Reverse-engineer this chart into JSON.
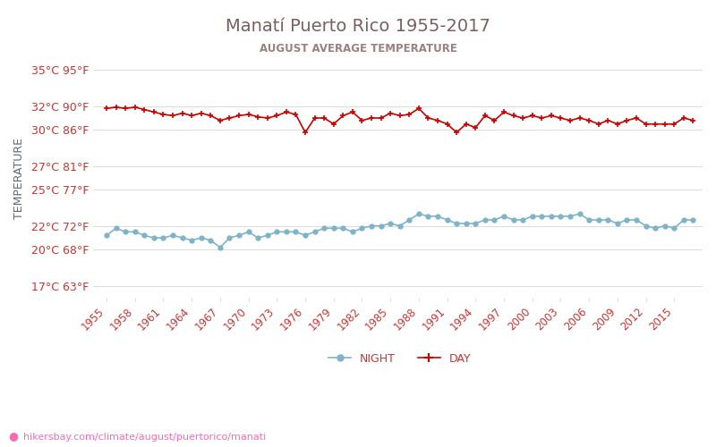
{
  "title": "Manatí Puerto Rico 1955-2017",
  "subtitle": "AUGUST AVERAGE TEMPERATURE",
  "ylabel": "TEMPERATURE",
  "url_text": "hikersbay.com/climate/august/puertorico/manati",
  "years": [
    1955,
    1956,
    1957,
    1958,
    1959,
    1960,
    1961,
    1962,
    1963,
    1964,
    1965,
    1966,
    1967,
    1968,
    1969,
    1970,
    1971,
    1972,
    1973,
    1974,
    1975,
    1976,
    1977,
    1978,
    1979,
    1980,
    1981,
    1982,
    1983,
    1984,
    1985,
    1986,
    1987,
    1988,
    1989,
    1990,
    1991,
    1992,
    1993,
    1994,
    1995,
    1996,
    1997,
    1998,
    1999,
    2000,
    2001,
    2002,
    2003,
    2004,
    2005,
    2006,
    2007,
    2008,
    2009,
    2010,
    2011,
    2012,
    2013,
    2014,
    2015,
    2016,
    2017
  ],
  "day_temps": [
    31.8,
    31.9,
    31.8,
    31.9,
    31.7,
    31.5,
    31.3,
    31.2,
    31.4,
    31.2,
    31.4,
    31.2,
    30.8,
    31.0,
    31.2,
    31.3,
    31.1,
    31.0,
    31.2,
    31.5,
    31.3,
    29.8,
    31.0,
    31.0,
    30.5,
    31.2,
    31.5,
    30.8,
    31.0,
    31.0,
    31.4,
    31.2,
    31.3,
    31.8,
    31.0,
    30.8,
    30.5,
    29.8,
    30.5,
    30.2,
    31.2,
    30.8,
    31.5,
    31.2,
    31.0,
    31.2,
    31.0,
    31.2,
    31.0,
    30.8,
    31.0,
    30.8,
    30.5,
    30.8,
    30.5,
    30.8,
    31.0,
    30.5,
    30.5,
    30.5,
    30.5,
    31.0,
    30.8
  ],
  "night_temps": [
    21.2,
    21.8,
    21.5,
    21.5,
    21.2,
    21.0,
    21.0,
    21.2,
    21.0,
    20.8,
    21.0,
    20.8,
    20.2,
    21.0,
    21.2,
    21.5,
    21.0,
    21.2,
    21.5,
    21.5,
    21.5,
    21.2,
    21.5,
    21.8,
    21.8,
    21.8,
    21.5,
    21.8,
    22.0,
    22.0,
    22.2,
    22.0,
    22.5,
    23.0,
    22.8,
    22.8,
    22.5,
    22.2,
    22.2,
    22.2,
    22.5,
    22.5,
    22.8,
    22.5,
    22.5,
    22.8,
    22.8,
    22.8,
    22.8,
    22.8,
    23.0,
    22.5,
    22.5,
    22.5,
    22.2,
    22.5,
    22.5,
    22.0,
    21.8,
    22.0,
    21.8,
    22.5,
    22.5
  ],
  "day_color": "#cc0000",
  "night_color": "#7fb3c8",
  "title_color": "#7a6060",
  "subtitle_color": "#9a8080",
  "axis_label_color": "#5a6a7a",
  "tick_label_color": "#cc3333",
  "grid_color": "#dddddd",
  "background_color": "#ffffff",
  "yticks_c": [
    17,
    20,
    22,
    25,
    27,
    30,
    32,
    35
  ],
  "yticks_f": [
    63,
    68,
    72,
    77,
    81,
    86,
    90,
    95
  ],
  "xtick_years": [
    1955,
    1958,
    1961,
    1964,
    1967,
    1970,
    1973,
    1976,
    1979,
    1982,
    1985,
    1988,
    1991,
    1994,
    1997,
    2000,
    2003,
    2006,
    2009,
    2012,
    2015
  ],
  "ylim_min": 16,
  "ylim_max": 36,
  "xlim_min": 1954,
  "xlim_max": 2018,
  "legend_night": "NIGHT",
  "legend_day": "DAY",
  "url_color": "#ff69b4",
  "pin_symbol": "●"
}
